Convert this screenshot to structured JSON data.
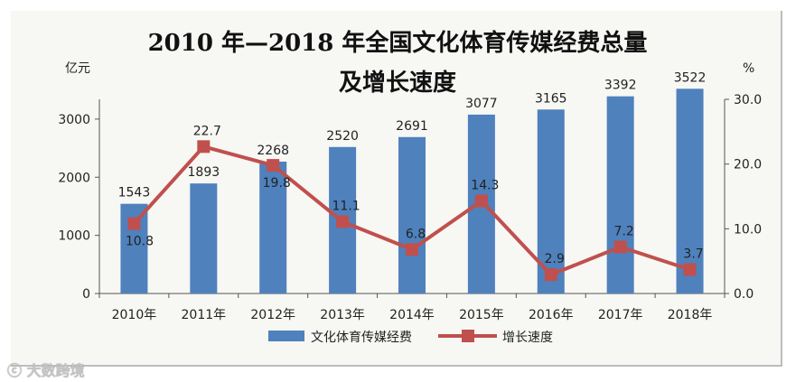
{
  "chart_data": {
    "type": "bar+line",
    "title_line1": "2010 年—2018 年全国文化体育传媒经费总量",
    "title_line2": "及增长速度",
    "left_axis_unit": "亿元",
    "right_axis_unit": "%",
    "categories": [
      "2010年",
      "2011年",
      "2012年",
      "2013年",
      "2014年",
      "2015年",
      "2016年",
      "2017年",
      "2018年"
    ],
    "left_ticks": [
      "0",
      "1000",
      "2000",
      "3000"
    ],
    "right_ticks": [
      "0.0",
      "10.0",
      "20.0",
      "30.0"
    ],
    "left_ylim": [
      0,
      3340
    ],
    "right_ylim": [
      0,
      30.0
    ],
    "series": [
      {
        "name": "文化体育传媒经费",
        "kind": "bar",
        "axis": "left",
        "color": "#4f81bd",
        "values": [
          1543,
          1893,
          2268,
          2520,
          2691,
          3077,
          3165,
          3392,
          3522
        ],
        "labels": [
          "1543",
          "1893",
          "2268",
          "2520",
          "2691",
          "3077",
          "3165",
          "3392",
          "3522"
        ]
      },
      {
        "name": "增长速度",
        "kind": "line",
        "axis": "right",
        "color": "#c0504d",
        "values": [
          10.8,
          22.7,
          19.8,
          11.1,
          6.8,
          14.3,
          2.9,
          7.2,
          3.7
        ],
        "labels": [
          "10.8",
          "22.7",
          "19.8",
          "11.1",
          "6.8",
          "14.3",
          "2.9",
          "7.2",
          "3.7"
        ]
      }
    ],
    "legend_position": "bottom"
  },
  "watermark": "大数跨境",
  "watermark_icon": "logo-icon"
}
